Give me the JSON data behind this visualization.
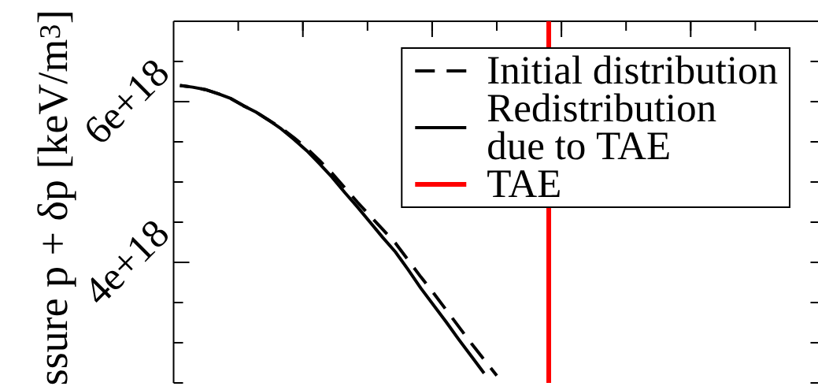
{
  "chart_data": {
    "type": "line",
    "ylabel": "ssure p + δp [keV/m$^{3}$]",
    "categories": [
      null,
      null,
      null,
      null,
      null,
      null,
      null,
      null,
      null,
      null,
      null,
      null,
      null,
      null,
      null,
      null,
      null,
      null,
      null,
      null,
      null,
      null,
      null,
      null,
      null,
      null,
      null,
      null,
      null,
      null,
      null,
      null,
      null,
      null,
      null,
      null,
      null,
      null,
      null,
      null,
      null,
      null,
      null,
      null,
      null,
      null,
      null,
      null,
      null,
      null,
      null
    ],
    "series": [
      {
        "name": "Initial distribution",
        "color": "#000000",
        "line_style": "dashed",
        "values": [
          6.2e+18,
          6.18e+18,
          6.15e+18,
          6.1e+18,
          6.04e+18,
          5.95e+18,
          5.87e+18,
          5.77e+18,
          5.67e+18,
          5.55e+18,
          5.42e+18,
          5.27e+18,
          5.11e+18,
          4.93e+18,
          4.75e+18,
          4.58e+18,
          4.41e+18,
          4.24e+18,
          4.03e+18,
          3.82e+18,
          3.62e+18,
          3.41e+18,
          3.2e+18,
          2.99e+18,
          2.79e+18,
          2.59e+18,
          null,
          null,
          null,
          null,
          null,
          null,
          null,
          null,
          null,
          null,
          null,
          null,
          null,
          null,
          null,
          null,
          null,
          null,
          null,
          null,
          null,
          null,
          null,
          null,
          null
        ]
      },
      {
        "name": "Redistribution due to TAE",
        "color": "#000000",
        "line_style": "solid",
        "values": [
          6.2e+18,
          6.18e+18,
          6.15e+18,
          6.1e+18,
          6.04e+18,
          5.95e+18,
          5.87e+18,
          5.77e+18,
          5.66e+18,
          5.53e+18,
          5.39e+18,
          5.23e+18,
          5.06e+18,
          4.87e+18,
          4.69e+18,
          4.5e+18,
          4.31e+18,
          4.13e+18,
          3.91e+18,
          3.68e+18,
          3.47e+18,
          3.26e+18,
          3.04e+18,
          2.83e+18,
          2.62e+18,
          null,
          null,
          null,
          null,
          null,
          null,
          null,
          null,
          null,
          null,
          null,
          null,
          null,
          null,
          null,
          null,
          null,
          null,
          null,
          null,
          null,
          null,
          null,
          null,
          null,
          null
        ]
      }
    ],
    "ylim": [
      2.5e+18,
      7e+18
    ],
    "yticks": [
      {
        "value": 2.5e+18,
        "label": null
      },
      {
        "value": 3e+18,
        "label": null
      },
      {
        "value": 3.5e+18,
        "label": null
      },
      {
        "value": 4e+18,
        "label": "4e+18"
      },
      {
        "value": 4.5e+18,
        "label": null
      },
      {
        "value": 5e+18,
        "label": null
      },
      {
        "value": 5.5e+18,
        "label": null
      },
      {
        "value": 6e+18,
        "label": "6e+18"
      },
      {
        "value": 6.5e+18,
        "label": null
      }
    ],
    "annotations": [
      "TAE"
    ],
    "legend": "top right",
    "tick_labels": "y"
  }
}
